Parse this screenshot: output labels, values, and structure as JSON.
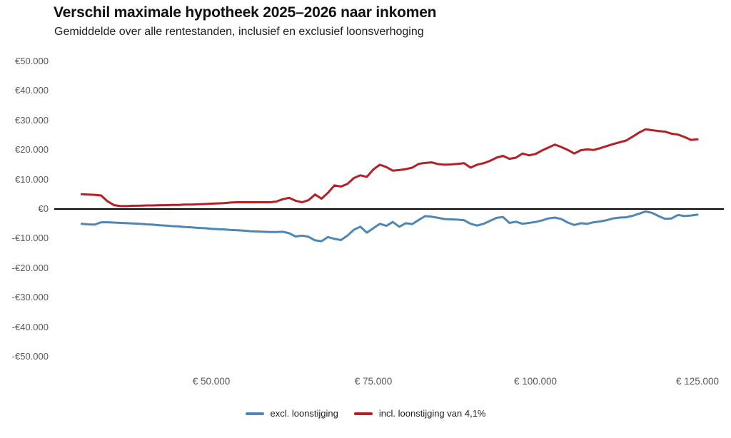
{
  "header": {
    "title": "Verschil maximale hypotheek 2025–2026 naar inkomen",
    "subtitle": "Gemiddelde over alle rentestanden, inclusief en exclusief loonsverhoging"
  },
  "chart_data": {
    "type": "line",
    "title": "Verschil maximale hypotheek 2025–2026 naar inkomen",
    "subtitle": "Gemiddelde over alle rentestanden, inclusief en exclusief loonsverhoging",
    "xlabel": "",
    "ylabel": "",
    "xlim": [
      27000,
      129000
    ],
    "ylim": [
      -50000,
      50000
    ],
    "grid": false,
    "legend_position": "bottom-center",
    "zero_line": true,
    "zero_line_color": "#000000",
    "x_ticks": [
      {
        "value": 50000,
        "label": "€ 50.000"
      },
      {
        "value": 75000,
        "label": "€ 75.000"
      },
      {
        "value": 100000,
        "label": "€ 100.000"
      },
      {
        "value": 125000,
        "label": "€ 125.000"
      }
    ],
    "y_ticks": [
      {
        "value": 50000,
        "label": "€50.000"
      },
      {
        "value": 40000,
        "label": "€40.000"
      },
      {
        "value": 30000,
        "label": "€30.000"
      },
      {
        "value": 20000,
        "label": "€20.000"
      },
      {
        "value": 10000,
        "label": "€10.000"
      },
      {
        "value": 0,
        "label": "€0"
      },
      {
        "value": -10000,
        "label": "-€10.000"
      },
      {
        "value": -20000,
        "label": "-€20.000"
      },
      {
        "value": -30000,
        "label": "-€30.000"
      },
      {
        "value": -40000,
        "label": "-€40.000"
      },
      {
        "value": -50000,
        "label": "-€50.000"
      }
    ],
    "x": [
      30000,
      31000,
      32000,
      33000,
      34000,
      35000,
      36000,
      37000,
      38000,
      39000,
      40000,
      41000,
      42000,
      43000,
      44000,
      45000,
      46000,
      47000,
      48000,
      49000,
      50000,
      51000,
      52000,
      53000,
      54000,
      55000,
      56000,
      57000,
      58000,
      59000,
      60000,
      61000,
      62000,
      63000,
      64000,
      65000,
      66000,
      67000,
      68000,
      69000,
      70000,
      71000,
      72000,
      73000,
      74000,
      75000,
      76000,
      77000,
      78000,
      79000,
      80000,
      81000,
      82000,
      83000,
      84000,
      85000,
      86000,
      87000,
      88000,
      89000,
      90000,
      91000,
      92000,
      93000,
      94000,
      95000,
      96000,
      97000,
      98000,
      99000,
      100000,
      101000,
      102000,
      103000,
      104000,
      105000,
      106000,
      107000,
      108000,
      109000,
      110000,
      111000,
      112000,
      113000,
      114000,
      115000,
      116000,
      117000,
      118000,
      119000,
      120000,
      121000,
      122000,
      123000,
      124000,
      125000
    ],
    "series": [
      {
        "name": "excl. loonstijging",
        "color": "#4e87b4",
        "values": [
          -5000,
          -5200,
          -5300,
          -4500,
          -4500,
          -4600,
          -4700,
          -4800,
          -4900,
          -5000,
          -5200,
          -5300,
          -5500,
          -5600,
          -5800,
          -5900,
          -6100,
          -6200,
          -6400,
          -6500,
          -6700,
          -6800,
          -6900,
          -7100,
          -7200,
          -7300,
          -7500,
          -7600,
          -7700,
          -7800,
          -7800,
          -7700,
          -8200,
          -9300,
          -9000,
          -9400,
          -10600,
          -10900,
          -9500,
          -10100,
          -10500,
          -9000,
          -7000,
          -6000,
          -8000,
          -6500,
          -5000,
          -5700,
          -4400,
          -6000,
          -4800,
          -5100,
          -3700,
          -2400,
          -2600,
          -3000,
          -3400,
          -3500,
          -3600,
          -3800,
          -5000,
          -5600,
          -5000,
          -4000,
          -3000,
          -2700,
          -4700,
          -4300,
          -5000,
          -4700,
          -4400,
          -3900,
          -3200,
          -2900,
          -3400,
          -4600,
          -5400,
          -4800,
          -5000,
          -4500,
          -4200,
          -3800,
          -3200,
          -2900,
          -2800,
          -2300,
          -1600,
          -800,
          -1300,
          -2400,
          -3300,
          -3200,
          -2000,
          -2400,
          -2200,
          -1900
        ]
      },
      {
        "name": "incl. loonstijging van 4,1%",
        "color": "#b32025",
        "values": [
          5000,
          4900,
          4800,
          4600,
          2600,
          1300,
          1000,
          1000,
          1100,
          1100,
          1200,
          1200,
          1300,
          1300,
          1400,
          1400,
          1500,
          1500,
          1600,
          1700,
          1800,
          1900,
          2000,
          2200,
          2300,
          2300,
          2300,
          2300,
          2300,
          2300,
          2500,
          3300,
          3800,
          2800,
          2300,
          3000,
          4900,
          3500,
          5500,
          8000,
          7600,
          8500,
          10500,
          11400,
          10900,
          13400,
          15000,
          14200,
          13000,
          13200,
          13500,
          14000,
          15300,
          15600,
          15800,
          15200,
          15000,
          15100,
          15300,
          15500,
          14000,
          15000,
          15500,
          16300,
          17400,
          18000,
          17000,
          17400,
          18800,
          18200,
          18600,
          19800,
          20800,
          21800,
          21000,
          20000,
          18800,
          19900,
          20200,
          20000,
          20600,
          21300,
          22000,
          22600,
          23200,
          24500,
          25900,
          27000,
          26700,
          26400,
          26200,
          25500,
          25200,
          24400,
          23400,
          23600
        ]
      }
    ]
  }
}
